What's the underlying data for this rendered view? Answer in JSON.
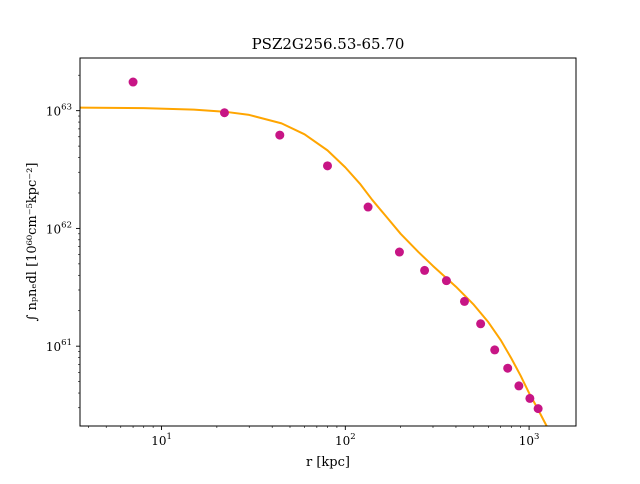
{
  "chart_data": {
    "type": "scatter",
    "title": "PSZ2G256.53-65.70",
    "xlabel": "r [kpc]",
    "ylabel": "∫ nₚnₑdl [10⁶⁰cm⁻⁵kpc⁻²]",
    "x_scale": "log",
    "y_scale": "log",
    "xlim": [
      3.6,
      1800
    ],
    "ylim": [
      2.1e+60,
      2.8e+63
    ],
    "x_ticks": [
      {
        "value": 10,
        "label": "10",
        "sup": "1"
      },
      {
        "value": 100,
        "label": "10",
        "sup": "2"
      },
      {
        "value": 1000,
        "label": "10",
        "sup": "3"
      }
    ],
    "y_ticks": [
      {
        "value": 1e+61,
        "label": "10",
        "sup": "61"
      },
      {
        "value": 1e+62,
        "label": "10",
        "sup": "62"
      },
      {
        "value": 1e+63,
        "label": "10",
        "sup": "63"
      }
    ],
    "grid": false,
    "series": [
      {
        "kind": "points",
        "color": "#C71585",
        "x": [
          7,
          22,
          44,
          80,
          133,
          197,
          270,
          355,
          445,
          545,
          650,
          765,
          880,
          1010,
          1120
        ],
        "y": [
          1.75e+63,
          9.6e+62,
          6.2e+62,
          3.4e+62,
          1.52e+62,
          6.3e+61,
          4.4e+61,
          3.6e+61,
          2.4e+61,
          1.55e+61,
          9.3e+60,
          6.5e+60,
          4.6e+60,
          3.6e+60,
          2.95e+60
        ]
      },
      {
        "kind": "line",
        "color": "#FFA500",
        "x": [
          3.6,
          8,
          15,
          22,
          30,
          45,
          60,
          80,
          100,
          120,
          140,
          170,
          200,
          250,
          300,
          400,
          500,
          600,
          700,
          800,
          900,
          1000,
          1100,
          1200,
          1300,
          1400
        ],
        "y": [
          1.06e+63,
          1.05e+63,
          1.02e+63,
          9.8e+62,
          9.2e+62,
          7.8e+62,
          6.3e+62,
          4.6e+62,
          3.3e+62,
          2.4e+62,
          1.75e+62,
          1.22e+62,
          9e+61,
          6.3e+61,
          4.8e+61,
          3.2e+61,
          2.25e+61,
          1.6e+61,
          1.13e+61,
          7.9e+60,
          5.6e+60,
          4e+60,
          3.05e+60,
          2.35e+60,
          1.85e+60,
          1.5e+60
        ]
      }
    ]
  }
}
